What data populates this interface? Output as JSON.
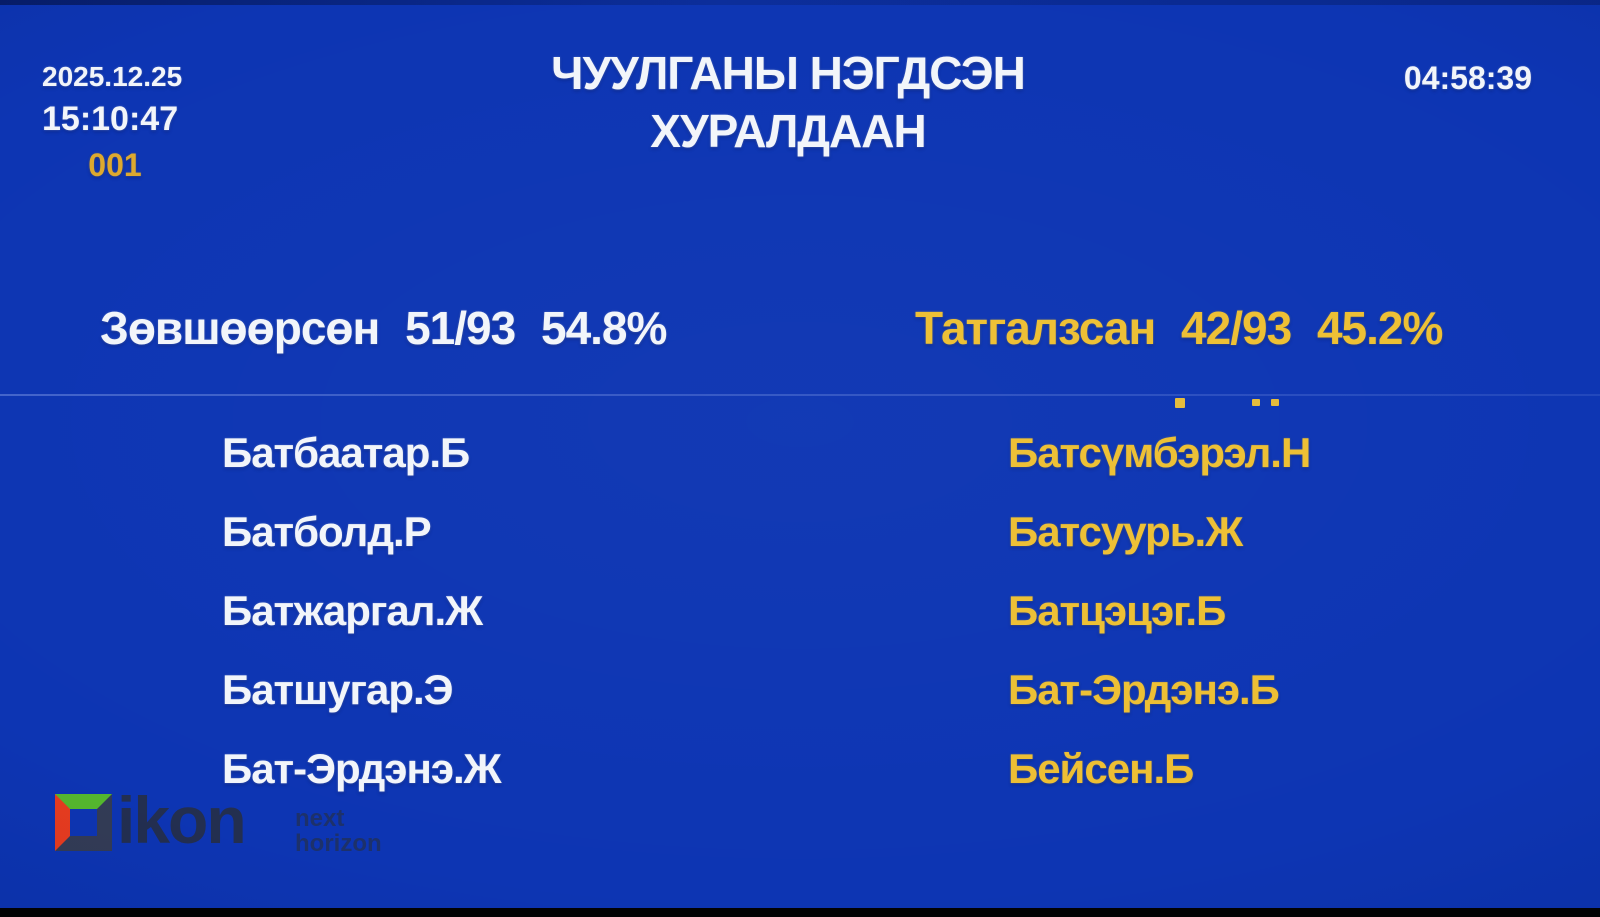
{
  "header": {
    "date": "2025.12.25",
    "clock": "15:10:47",
    "session_id": "001",
    "title_line1": "ЧУУЛГАНЫ НЭГДСЭН",
    "title_line2": "ХУРАЛДААН",
    "elapsed_timer": "04:58:39"
  },
  "results": {
    "approved": {
      "label": "Зөвшөөрсөн",
      "votes": "51/93",
      "percent": "54.8%"
    },
    "rejected": {
      "label": "Татгалзсан",
      "votes": "42/93",
      "percent": "45.2%"
    }
  },
  "approved_names": [
    "Батбаатар.Б",
    "Батболд.Р",
    "Батжаргал.Ж",
    "Батшугар.Э",
    "Бат-Эрдэнэ.Ж"
  ],
  "rejected_names": [
    "Батсүмбэрэл.Н",
    "Батсуурь.Ж",
    "Батцэцэг.Б",
    "Бат-Эрдэнэ.Б",
    "Бейсен.Б"
  ],
  "logo": {
    "brand": "ikon",
    "tagline_line1": "next",
    "tagline_line2": "horizon"
  },
  "colors": {
    "background_blue": "#0d35b3",
    "accent_yellow": "#edbf33",
    "session_gold": "#dda92e",
    "text_white": "#f2f5fa",
    "logo_green": "#55b82e",
    "logo_red": "#e83c1f"
  }
}
